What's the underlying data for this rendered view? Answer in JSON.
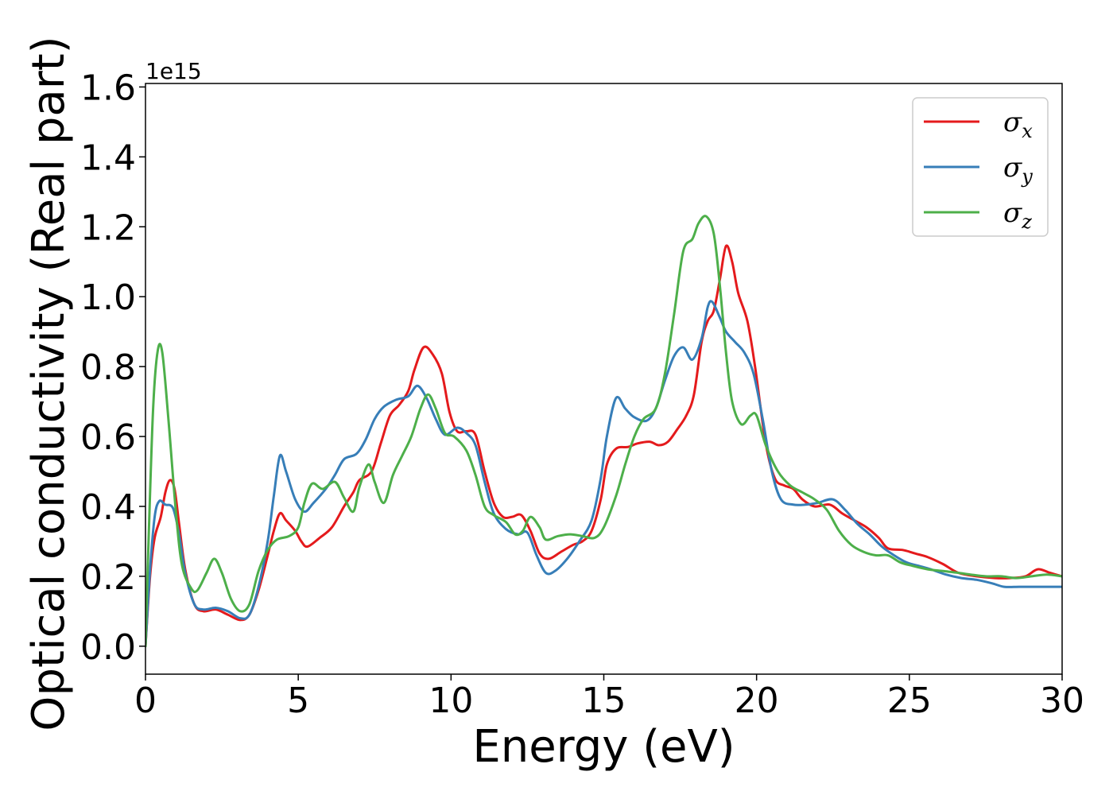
{
  "chart_data": {
    "type": "line",
    "title": "",
    "xlabel": "Energy (eV)",
    "ylabel": "Optical conductivity (Real part)",
    "y_offset_label": "1e15",
    "xlim": [
      0,
      30
    ],
    "ylim": [
      -0.08,
      1.61
    ],
    "x_ticks": [
      0,
      5,
      10,
      15,
      20,
      25,
      30
    ],
    "x_tick_labels": [
      "0",
      "5",
      "10",
      "15",
      "20",
      "25",
      "30"
    ],
    "y_ticks": [
      0.0,
      0.2,
      0.4,
      0.6,
      0.8,
      1.0,
      1.2,
      1.4,
      1.6
    ],
    "y_tick_labels": [
      "0.0",
      "0.2",
      "0.4",
      "0.6",
      "0.8",
      "1.0",
      "1.2",
      "1.4",
      "1.6"
    ],
    "grid": false,
    "legend_position": "top-right",
    "series": [
      {
        "name": "σx",
        "symbol": "σ",
        "subscript": "x",
        "color": "#e41a1c",
        "points": [
          [
            0,
            0
          ],
          [
            0.15,
            0.2
          ],
          [
            0.3,
            0.31
          ],
          [
            0.5,
            0.37
          ],
          [
            0.65,
            0.44
          ],
          [
            0.8,
            0.475
          ],
          [
            0.95,
            0.45
          ],
          [
            1.1,
            0.35
          ],
          [
            1.3,
            0.22
          ],
          [
            1.6,
            0.12
          ],
          [
            1.9,
            0.1
          ],
          [
            2.3,
            0.105
          ],
          [
            2.7,
            0.09
          ],
          [
            3.1,
            0.075
          ],
          [
            3.4,
            0.09
          ],
          [
            3.7,
            0.16
          ],
          [
            4.0,
            0.26
          ],
          [
            4.2,
            0.33
          ],
          [
            4.4,
            0.38
          ],
          [
            4.6,
            0.36
          ],
          [
            4.9,
            0.33
          ],
          [
            5.1,
            0.3
          ],
          [
            5.3,
            0.285
          ],
          [
            5.7,
            0.31
          ],
          [
            6.1,
            0.34
          ],
          [
            6.5,
            0.4
          ],
          [
            6.8,
            0.44
          ],
          [
            7.0,
            0.475
          ],
          [
            7.4,
            0.5
          ],
          [
            7.7,
            0.58
          ],
          [
            8.0,
            0.66
          ],
          [
            8.3,
            0.69
          ],
          [
            8.6,
            0.73
          ],
          [
            8.8,
            0.79
          ],
          [
            9.1,
            0.855
          ],
          [
            9.4,
            0.835
          ],
          [
            9.7,
            0.78
          ],
          [
            9.95,
            0.67
          ],
          [
            10.2,
            0.615
          ],
          [
            10.5,
            0.615
          ],
          [
            10.8,
            0.605
          ],
          [
            11.1,
            0.5
          ],
          [
            11.4,
            0.41
          ],
          [
            11.7,
            0.37
          ],
          [
            12.0,
            0.37
          ],
          [
            12.3,
            0.375
          ],
          [
            12.6,
            0.33
          ],
          [
            12.9,
            0.265
          ],
          [
            13.2,
            0.25
          ],
          [
            13.6,
            0.27
          ],
          [
            14.0,
            0.29
          ],
          [
            14.3,
            0.3
          ],
          [
            14.6,
            0.33
          ],
          [
            14.9,
            0.42
          ],
          [
            15.1,
            0.52
          ],
          [
            15.4,
            0.565
          ],
          [
            15.8,
            0.57
          ],
          [
            16.1,
            0.58
          ],
          [
            16.5,
            0.585
          ],
          [
            16.8,
            0.575
          ],
          [
            17.1,
            0.585
          ],
          [
            17.4,
            0.62
          ],
          [
            17.7,
            0.66
          ],
          [
            17.95,
            0.72
          ],
          [
            18.2,
            0.87
          ],
          [
            18.4,
            0.93
          ],
          [
            18.6,
            0.96
          ],
          [
            18.8,
            1.05
          ],
          [
            19.0,
            1.145
          ],
          [
            19.2,
            1.1
          ],
          [
            19.4,
            1.01
          ],
          [
            19.7,
            0.93
          ],
          [
            19.95,
            0.8
          ],
          [
            20.3,
            0.58
          ],
          [
            20.6,
            0.48
          ],
          [
            20.9,
            0.46
          ],
          [
            21.2,
            0.45
          ],
          [
            21.5,
            0.42
          ],
          [
            21.9,
            0.4
          ],
          [
            22.4,
            0.405
          ],
          [
            22.8,
            0.38
          ],
          [
            23.2,
            0.36
          ],
          [
            23.6,
            0.34
          ],
          [
            24.0,
            0.31
          ],
          [
            24.3,
            0.28
          ],
          [
            24.8,
            0.275
          ],
          [
            25.2,
            0.265
          ],
          [
            25.6,
            0.255
          ],
          [
            26.1,
            0.235
          ],
          [
            26.6,
            0.21
          ],
          [
            27.2,
            0.2
          ],
          [
            27.8,
            0.195
          ],
          [
            28.3,
            0.195
          ],
          [
            28.8,
            0.2
          ],
          [
            29.2,
            0.22
          ],
          [
            29.6,
            0.21
          ],
          [
            30,
            0.2
          ]
        ]
      },
      {
        "name": "σy",
        "symbol": "σ",
        "subscript": "y",
        "color": "#377eb8",
        "points": [
          [
            0,
            0
          ],
          [
            0.15,
            0.22
          ],
          [
            0.3,
            0.37
          ],
          [
            0.45,
            0.415
          ],
          [
            0.65,
            0.405
          ],
          [
            0.9,
            0.395
          ],
          [
            1.1,
            0.32
          ],
          [
            1.3,
            0.21
          ],
          [
            1.6,
            0.12
          ],
          [
            1.9,
            0.105
          ],
          [
            2.3,
            0.11
          ],
          [
            2.7,
            0.1
          ],
          [
            3.1,
            0.08
          ],
          [
            3.4,
            0.09
          ],
          [
            3.7,
            0.17
          ],
          [
            4.0,
            0.3
          ],
          [
            4.2,
            0.43
          ],
          [
            4.4,
            0.545
          ],
          [
            4.6,
            0.5
          ],
          [
            4.9,
            0.42
          ],
          [
            5.2,
            0.385
          ],
          [
            5.5,
            0.41
          ],
          [
            5.9,
            0.45
          ],
          [
            6.2,
            0.49
          ],
          [
            6.5,
            0.535
          ],
          [
            6.9,
            0.55
          ],
          [
            7.2,
            0.59
          ],
          [
            7.5,
            0.65
          ],
          [
            7.8,
            0.685
          ],
          [
            8.2,
            0.705
          ],
          [
            8.6,
            0.715
          ],
          [
            8.9,
            0.745
          ],
          [
            9.2,
            0.71
          ],
          [
            9.5,
            0.65
          ],
          [
            9.8,
            0.605
          ],
          [
            10.2,
            0.625
          ],
          [
            10.5,
            0.61
          ],
          [
            10.8,
            0.575
          ],
          [
            11.1,
            0.47
          ],
          [
            11.4,
            0.38
          ],
          [
            11.8,
            0.335
          ],
          [
            12.2,
            0.32
          ],
          [
            12.5,
            0.325
          ],
          [
            12.8,
            0.26
          ],
          [
            13.1,
            0.21
          ],
          [
            13.4,
            0.215
          ],
          [
            13.8,
            0.25
          ],
          [
            14.2,
            0.3
          ],
          [
            14.6,
            0.36
          ],
          [
            14.9,
            0.48
          ],
          [
            15.1,
            0.6
          ],
          [
            15.4,
            0.71
          ],
          [
            15.7,
            0.68
          ],
          [
            16.0,
            0.655
          ],
          [
            16.4,
            0.645
          ],
          [
            16.7,
            0.68
          ],
          [
            17.0,
            0.76
          ],
          [
            17.3,
            0.83
          ],
          [
            17.6,
            0.855
          ],
          [
            17.9,
            0.82
          ],
          [
            18.2,
            0.88
          ],
          [
            18.4,
            0.97
          ],
          [
            18.55,
            0.985
          ],
          [
            18.8,
            0.94
          ],
          [
            19.0,
            0.9
          ],
          [
            19.3,
            0.87
          ],
          [
            19.6,
            0.84
          ],
          [
            19.9,
            0.78
          ],
          [
            20.2,
            0.65
          ],
          [
            20.5,
            0.5
          ],
          [
            20.8,
            0.42
          ],
          [
            21.2,
            0.405
          ],
          [
            21.6,
            0.405
          ],
          [
            22.0,
            0.41
          ],
          [
            22.5,
            0.42
          ],
          [
            22.9,
            0.39
          ],
          [
            23.3,
            0.35
          ],
          [
            23.7,
            0.32
          ],
          [
            24.1,
            0.285
          ],
          [
            24.5,
            0.26
          ],
          [
            24.9,
            0.24
          ],
          [
            25.3,
            0.23
          ],
          [
            25.7,
            0.22
          ],
          [
            26.2,
            0.205
          ],
          [
            26.7,
            0.195
          ],
          [
            27.2,
            0.19
          ],
          [
            27.7,
            0.18
          ],
          [
            28.1,
            0.17
          ],
          [
            28.6,
            0.17
          ],
          [
            29.2,
            0.17
          ],
          [
            30,
            0.17
          ]
        ]
      },
      {
        "name": "σz",
        "symbol": "σ",
        "subscript": "z",
        "color": "#4daf4a",
        "points": [
          [
            0,
            0
          ],
          [
            0.1,
            0.3
          ],
          [
            0.25,
            0.68
          ],
          [
            0.4,
            0.845
          ],
          [
            0.55,
            0.84
          ],
          [
            0.75,
            0.65
          ],
          [
            1.0,
            0.38
          ],
          [
            1.2,
            0.23
          ],
          [
            1.5,
            0.165
          ],
          [
            1.7,
            0.16
          ],
          [
            2.0,
            0.21
          ],
          [
            2.25,
            0.25
          ],
          [
            2.5,
            0.21
          ],
          [
            2.8,
            0.135
          ],
          [
            3.1,
            0.1
          ],
          [
            3.4,
            0.12
          ],
          [
            3.7,
            0.215
          ],
          [
            4.0,
            0.275
          ],
          [
            4.3,
            0.305
          ],
          [
            4.7,
            0.315
          ],
          [
            5.0,
            0.34
          ],
          [
            5.2,
            0.41
          ],
          [
            5.45,
            0.465
          ],
          [
            5.8,
            0.45
          ],
          [
            6.2,
            0.47
          ],
          [
            6.5,
            0.425
          ],
          [
            6.8,
            0.385
          ],
          [
            7.0,
            0.455
          ],
          [
            7.3,
            0.52
          ],
          [
            7.5,
            0.47
          ],
          [
            7.8,
            0.41
          ],
          [
            8.1,
            0.49
          ],
          [
            8.4,
            0.545
          ],
          [
            8.7,
            0.6
          ],
          [
            9.0,
            0.68
          ],
          [
            9.25,
            0.72
          ],
          [
            9.5,
            0.68
          ],
          [
            9.8,
            0.61
          ],
          [
            10.1,
            0.6
          ],
          [
            10.5,
            0.56
          ],
          [
            10.8,
            0.49
          ],
          [
            11.1,
            0.4
          ],
          [
            11.4,
            0.375
          ],
          [
            11.8,
            0.355
          ],
          [
            12.1,
            0.32
          ],
          [
            12.35,
            0.33
          ],
          [
            12.6,
            0.37
          ],
          [
            12.9,
            0.34
          ],
          [
            13.1,
            0.305
          ],
          [
            13.5,
            0.315
          ],
          [
            13.9,
            0.32
          ],
          [
            14.3,
            0.315
          ],
          [
            14.7,
            0.31
          ],
          [
            15.0,
            0.34
          ],
          [
            15.4,
            0.43
          ],
          [
            15.7,
            0.52
          ],
          [
            16.0,
            0.6
          ],
          [
            16.3,
            0.65
          ],
          [
            16.7,
            0.68
          ],
          [
            17.0,
            0.78
          ],
          [
            17.3,
            0.95
          ],
          [
            17.6,
            1.13
          ],
          [
            17.9,
            1.165
          ],
          [
            18.1,
            1.21
          ],
          [
            18.35,
            1.23
          ],
          [
            18.6,
            1.18
          ],
          [
            18.8,
            1.03
          ],
          [
            19.0,
            0.84
          ],
          [
            19.2,
            0.7
          ],
          [
            19.5,
            0.635
          ],
          [
            19.8,
            0.66
          ],
          [
            20.0,
            0.66
          ],
          [
            20.3,
            0.575
          ],
          [
            20.7,
            0.5
          ],
          [
            21.1,
            0.46
          ],
          [
            21.5,
            0.44
          ],
          [
            21.9,
            0.42
          ],
          [
            22.3,
            0.39
          ],
          [
            22.7,
            0.33
          ],
          [
            23.1,
            0.29
          ],
          [
            23.5,
            0.27
          ],
          [
            23.9,
            0.26
          ],
          [
            24.3,
            0.26
          ],
          [
            24.7,
            0.24
          ],
          [
            25.1,
            0.23
          ],
          [
            25.6,
            0.22
          ],
          [
            26.1,
            0.215
          ],
          [
            26.6,
            0.21
          ],
          [
            27.0,
            0.205
          ],
          [
            27.5,
            0.2
          ],
          [
            28.0,
            0.2
          ],
          [
            28.5,
            0.195
          ],
          [
            29.0,
            0.2
          ],
          [
            29.5,
            0.205
          ],
          [
            30,
            0.2
          ]
        ]
      }
    ]
  }
}
